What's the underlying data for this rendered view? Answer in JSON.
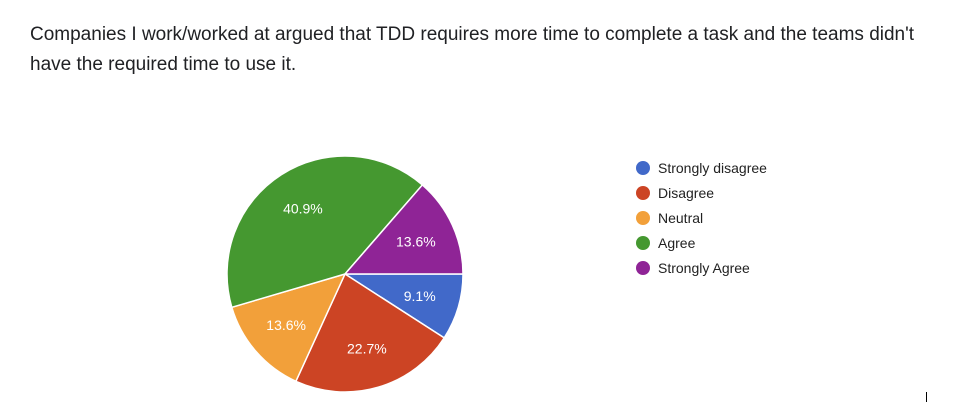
{
  "question": {
    "text": "Companies I work/worked at argued that TDD requires more time to complete a task and the teams didn't have the required time to use it."
  },
  "chart_data": {
    "type": "pie",
    "title": "",
    "categories": [
      "Strongly disagree",
      "Disagree",
      "Neutral",
      "Agree",
      "Strongly Agree"
    ],
    "values": [
      9.1,
      22.7,
      13.6,
      40.9,
      13.6
    ],
    "value_labels": [
      "9.1%",
      "22.7%",
      "13.6%",
      "40.9%",
      "13.6%"
    ],
    "colors": [
      "#3366cc",
      "#dc3912",
      "#ff9900",
      "#109618",
      "#990099"
    ],
    "display_colors": [
      "#4169c9",
      "#cc4424",
      "#f2a03a",
      "#459830",
      "#8f2496"
    ],
    "legend_position": "right"
  }
}
